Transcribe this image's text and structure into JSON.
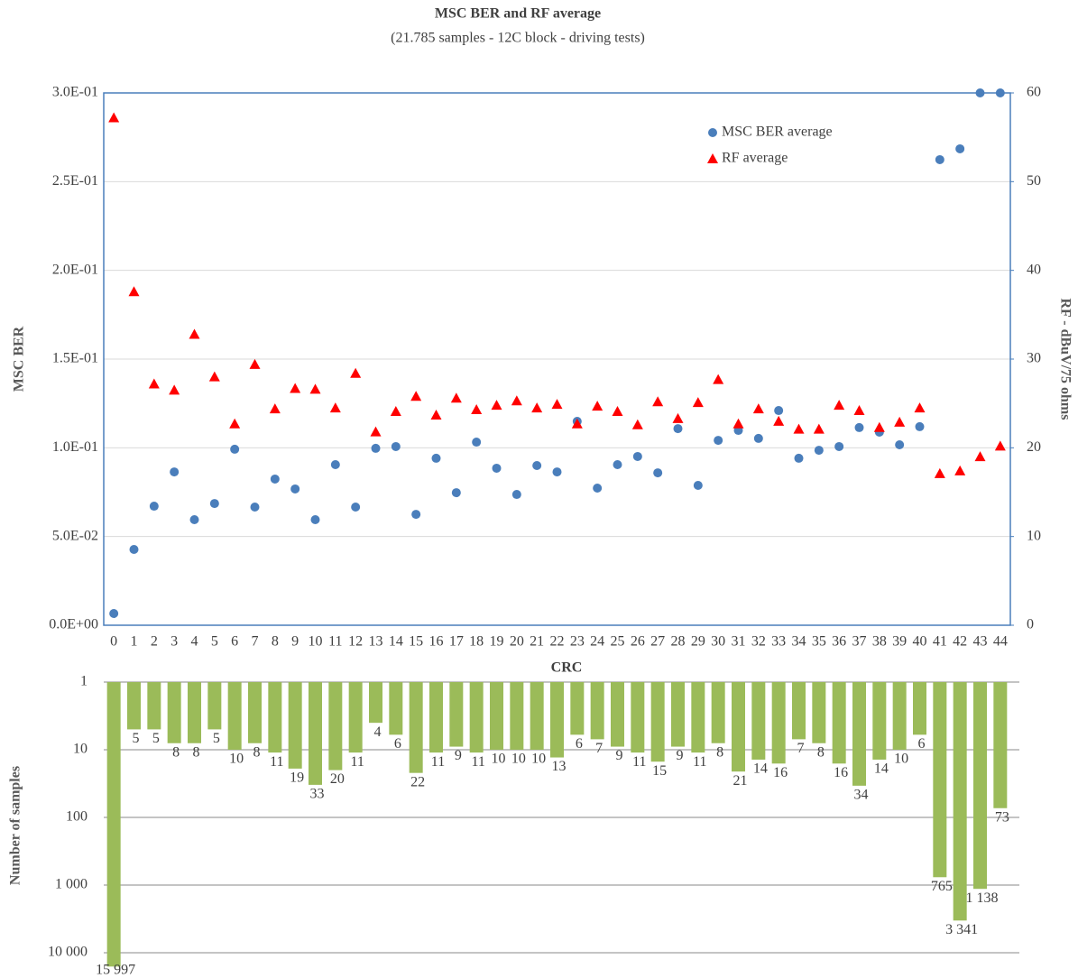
{
  "chart_data": [
    {
      "type": "scatter",
      "title": "MSC BER and RF average",
      "subtitle": "(21.785 samples - 12C block - driving tests)",
      "y_label": "MSC  BER",
      "y2_label": "RF - dBuV/75 ohms",
      "categories": [
        "0",
        "1",
        "2",
        "3",
        "4",
        "5",
        "6",
        "7",
        "8",
        "9",
        "10",
        "11",
        "12",
        "13",
        "14",
        "15",
        "16",
        "17",
        "18",
        "19",
        "20",
        "21",
        "22",
        "23",
        "24",
        "25",
        "26",
        "27",
        "28",
        "29",
        "30",
        "31",
        "32",
        "33",
        "34",
        "35",
        "36",
        "37",
        "38",
        "39",
        "40",
        "41",
        "42",
        "43",
        "44"
      ],
      "series": [
        {
          "name": "MSC BER average",
          "color": "#4a7ebb",
          "marker": "circle",
          "values": [
            0.0066,
            0.0427,
            0.0671,
            0.0864,
            0.0595,
            0.0686,
            0.0992,
            0.0666,
            0.0824,
            0.0768,
            0.0595,
            0.0905,
            0.0666,
            0.0997,
            0.1007,
            0.0625,
            0.0941,
            0.0747,
            0.1032,
            0.0885,
            0.0737,
            0.09,
            0.0864,
            0.1149,
            0.0773,
            0.0905,
            0.0951,
            0.0859,
            0.1108,
            0.0788,
            0.1042,
            0.1098,
            0.1053,
            0.121,
            0.0941,
            0.0986,
            0.1007,
            0.1114,
            0.1088,
            0.1017,
            0.1119,
            0.2624,
            0.2685,
            0.3,
            0.3
          ]
        },
        {
          "name": "RF average",
          "color": "#ff0000",
          "marker": "triangle",
          "axis": "y2",
          "values": [
            57.2,
            37.6,
            27.2,
            26.5,
            32.8,
            28.0,
            22.7,
            29.4,
            24.4,
            26.7,
            26.6,
            24.5,
            28.4,
            21.8,
            24.1,
            25.8,
            23.7,
            25.6,
            24.3,
            24.8,
            25.3,
            24.5,
            24.9,
            22.7,
            24.7,
            24.1,
            22.6,
            25.2,
            23.3,
            25.1,
            27.7,
            22.7,
            24.4,
            23.0,
            22.1,
            22.1,
            24.8,
            24.2,
            22.3,
            22.9,
            24.5,
            17.1,
            17.4,
            19.0,
            20.2
          ]
        }
      ],
      "ylim": [
        0,
        0.3
      ],
      "yticks": [
        {
          "value": 0,
          "label": "0.0E+00"
        },
        {
          "value": 0.05,
          "label": "5.0E-02"
        },
        {
          "value": 0.1,
          "label": "1.0E-01"
        },
        {
          "value": 0.15,
          "label": "1.5E-01"
        },
        {
          "value": 0.2,
          "label": "2.0E-01"
        },
        {
          "value": 0.25,
          "label": "2.5E-01"
        },
        {
          "value": 0.3,
          "label": "3.0E-01"
        }
      ],
      "y2lim": [
        0,
        60
      ],
      "y2ticks": [
        0,
        10,
        20,
        30,
        40,
        50,
        60
      ],
      "grid": true,
      "legend": "upper right",
      "frame_color": "#4a7ebb"
    },
    {
      "type": "bar",
      "title": "CRC",
      "y_label": "Number of samples",
      "color": "#9bbb59",
      "log_scale": true,
      "reversed": true,
      "values": [
        15997,
        5,
        5,
        8,
        8,
        5,
        10,
        8,
        11,
        19,
        33,
        20,
        11,
        4,
        6,
        22,
        11,
        9,
        11,
        10,
        10,
        10,
        13,
        6,
        7,
        9,
        11,
        15,
        9,
        11,
        8,
        21,
        14,
        16,
        7,
        8,
        16,
        34,
        14,
        10,
        6,
        765,
        3341,
        1138,
        73
      ],
      "value_labels": [
        "15 997",
        "5",
        "5",
        "8",
        "8",
        "5",
        "10",
        "8",
        "11",
        "19",
        "33",
        "20",
        "11",
        "4",
        "6",
        "22",
        "11",
        "9",
        "11",
        "10",
        "10",
        "10",
        "13",
        "6",
        "7",
        "9",
        "11",
        "15",
        "9",
        "11",
        "8",
        "21",
        "14",
        "16",
        "7",
        "8",
        "16",
        "34",
        "14",
        "10",
        "6",
        "765",
        "3 341",
        "1 138",
        "73"
      ],
      "ylim": [
        1,
        20000
      ],
      "yticks": [
        1,
        10,
        100,
        {
          "value": 1000,
          "label": "1 000"
        },
        {
          "value": 10000,
          "label": "10 000"
        }
      ],
      "grid": true
    }
  ]
}
